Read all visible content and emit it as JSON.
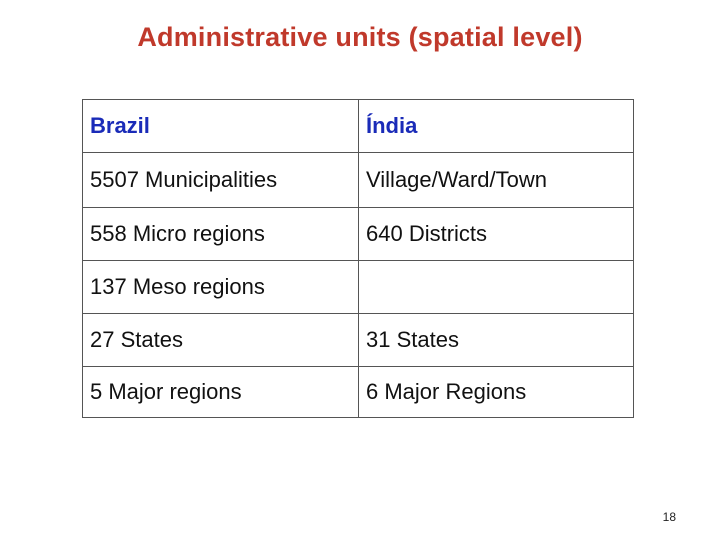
{
  "title": "Administrative units (spatial level)",
  "table": {
    "headers": [
      "Brazil",
      "Índia"
    ],
    "rows": [
      [
        "5507 Municipalities",
        "Village/Ward/Town"
      ],
      [
        "558 Micro regions",
        "640 Districts"
      ],
      [
        "137 Meso regions",
        ""
      ],
      [
        "27 States",
        "31 States"
      ],
      [
        "5 Major regions",
        "6 Major Regions"
      ]
    ]
  },
  "page_number": "18",
  "colors": {
    "title": "#c0392b",
    "header_text": "#1a2bb8",
    "border": "#555555"
  }
}
